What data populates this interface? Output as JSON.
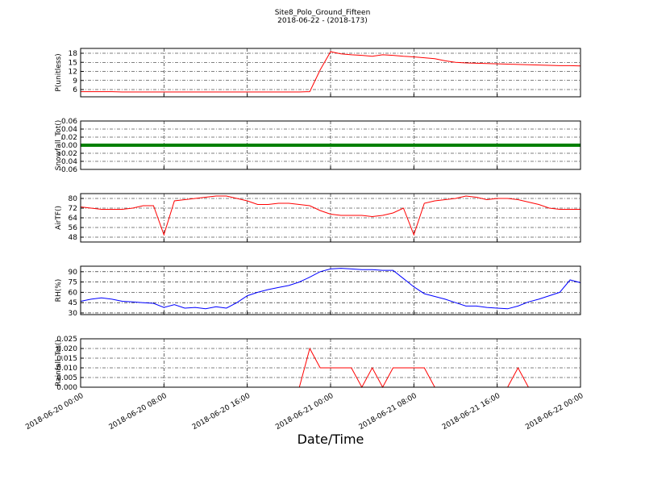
{
  "chart_data": {
    "type": "line",
    "title": "Site8_Polo_Ground_Fifteen",
    "subtitle": "2018-06-22 - (2018-173)",
    "xlabel": "Date/Time",
    "grid": true,
    "x": [
      "2018-06-20 00:00",
      "2018-06-20 01:00",
      "2018-06-20 02:00",
      "2018-06-20 03:00",
      "2018-06-20 04:00",
      "2018-06-20 05:00",
      "2018-06-20 06:00",
      "2018-06-20 07:00",
      "2018-06-20 08:00",
      "2018-06-20 09:00",
      "2018-06-20 10:00",
      "2018-06-20 11:00",
      "2018-06-20 12:00",
      "2018-06-20 13:00",
      "2018-06-20 14:00",
      "2018-06-20 15:00",
      "2018-06-20 16:00",
      "2018-06-20 17:00",
      "2018-06-20 18:00",
      "2018-06-20 19:00",
      "2018-06-20 20:00",
      "2018-06-20 21:00",
      "2018-06-20 22:00",
      "2018-06-20 23:00",
      "2018-06-21 00:00",
      "2018-06-21 01:00",
      "2018-06-21 02:00",
      "2018-06-21 03:00",
      "2018-06-21 04:00",
      "2018-06-21 05:00",
      "2018-06-21 06:00",
      "2018-06-21 07:00",
      "2018-06-21 08:00",
      "2018-06-21 09:00",
      "2018-06-21 10:00",
      "2018-06-21 11:00",
      "2018-06-21 12:00",
      "2018-06-21 13:00",
      "2018-06-21 14:00",
      "2018-06-21 15:00",
      "2018-06-21 16:00",
      "2018-06-21 17:00",
      "2018-06-21 18:00",
      "2018-06-21 19:00",
      "2018-06-21 20:00",
      "2018-06-21 21:00",
      "2018-06-21 22:00",
      "2018-06-21 23:00",
      "2018-06-22 00:00"
    ],
    "xlim": [
      "2018-06-20 00:00",
      "2018-06-22 00:00"
    ],
    "xticks": [
      "2018-06-20 00:00",
      "2018-06-20 08:00",
      "2018-06-20 16:00",
      "2018-06-21 00:00",
      "2018-06-21 08:00",
      "2018-06-21 16:00",
      "2018-06-22 00:00"
    ],
    "panels": [
      {
        "ylabel": "P(unitless)",
        "color": "#ff0000",
        "ylim": [
          3.6,
          19.6
        ],
        "yticks": [
          6,
          9,
          12,
          15,
          18
        ],
        "values": [
          5.3,
          5.3,
          5.3,
          5.3,
          5.2,
          5.2,
          5.2,
          5.2,
          5.2,
          5.2,
          5.2,
          5.2,
          5.2,
          5.2,
          5.2,
          5.2,
          5.2,
          5.2,
          5.2,
          5.2,
          5.2,
          5.2,
          5.3,
          12.5,
          18.5,
          17.8,
          17.5,
          17.3,
          17.0,
          17.5,
          17.3,
          17.0,
          16.8,
          16.5,
          16.2,
          15.5,
          15.0,
          14.8,
          14.7,
          14.6,
          14.5,
          14.4,
          14.3,
          14.2,
          14.1,
          14.0,
          13.9,
          13.9,
          13.8
        ]
      },
      {
        "ylabel": "Snowfall_Tot()",
        "color": "#008000",
        "ylim": [
          -0.06,
          0.06
        ],
        "yticks": [
          {
            "value": -0.06,
            "label": "-0.06"
          },
          {
            "value": -0.04,
            "label": "-0.04"
          },
          {
            "value": -0.02,
            "label": "-0.02"
          },
          {
            "value": 0,
            "label": "0.00"
          },
          {
            "value": 0.02,
            "label": "0.02"
          },
          {
            "value": 0.04,
            "label": "0.04"
          },
          {
            "value": 0.06,
            "label": "0.06"
          }
        ],
        "values": [
          0,
          0,
          0,
          0,
          0,
          0,
          0,
          0,
          0,
          0,
          0,
          0,
          0,
          0,
          0,
          0,
          0,
          0,
          0,
          0,
          0,
          0,
          0,
          0,
          0,
          0,
          0,
          0,
          0,
          0,
          0,
          0,
          0,
          0,
          0,
          0,
          0,
          0,
          0,
          0,
          0,
          0,
          0,
          0,
          0,
          0,
          0,
          0,
          0
        ]
      },
      {
        "ylabel": "AirTF()",
        "color": "#ff0000",
        "ylim": [
          44,
          84
        ],
        "yticks": [
          48,
          56,
          64,
          72,
          80
        ],
        "values": [
          73,
          72,
          71,
          71,
          71,
          72,
          74,
          74,
          50,
          78,
          79,
          80,
          81,
          82,
          82,
          80,
          78,
          75,
          75,
          76,
          76,
          75,
          74,
          70,
          67,
          66,
          66,
          66,
          65,
          66,
          68,
          72,
          50,
          76,
          78,
          79,
          80,
          82,
          81,
          79,
          80,
          80,
          79,
          77,
          75,
          72,
          71,
          71,
          71
        ]
      },
      {
        "ylabel": "RH(%)",
        "color": "#0000ff",
        "ylim": [
          27.6,
          98
        ],
        "yticks": [
          30,
          45,
          60,
          75,
          90
        ],
        "values": [
          47,
          50,
          52,
          50,
          47,
          46,
          45,
          44,
          38,
          42,
          37,
          38,
          36,
          39,
          37,
          45,
          55,
          60,
          64,
          67,
          70,
          75,
          82,
          90,
          94,
          95,
          94,
          93,
          93,
          92,
          92,
          80,
          68,
          58,
          54,
          50,
          45,
          40,
          40,
          38,
          37,
          36,
          40,
          46,
          50,
          55,
          60,
          78,
          74
        ]
      },
      {
        "ylabel": "Rainfall_Tot()",
        "color": "#ff0000",
        "ylim": [
          0,
          0.025
        ],
        "yticks": [
          {
            "value": 0,
            "label": "0.000"
          },
          {
            "value": 0.005,
            "label": "0.005"
          },
          {
            "value": 0.01,
            "label": "0.010"
          },
          {
            "value": 0.015,
            "label": "0.015"
          },
          {
            "value": 0.02,
            "label": "0.020"
          },
          {
            "value": 0.025,
            "label": "0.025"
          }
        ],
        "values": [
          0,
          0,
          0,
          0,
          0,
          0,
          0,
          0,
          0,
          0,
          0,
          0,
          0,
          0,
          0,
          0,
          0,
          0,
          0,
          0,
          0,
          0,
          0.02,
          0.01,
          0.01,
          0.01,
          0.01,
          0,
          0.01,
          0,
          0.01,
          0.01,
          0.01,
          0.01,
          0,
          0,
          0,
          0,
          0,
          0,
          0,
          0,
          0.01,
          0,
          0,
          0,
          0,
          0,
          0
        ]
      }
    ]
  }
}
